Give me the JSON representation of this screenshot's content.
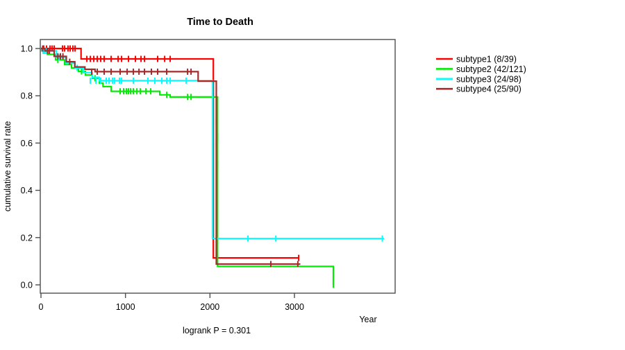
{
  "chart_data": {
    "type": "line",
    "variant": "kaplan-meier-step",
    "title": "Time to Death",
    "xlabel": "Year",
    "ylabel": "cumulative survival rate",
    "footnote": "logrank P = 0.301",
    "xticks": [
      0,
      1000,
      2000,
      3000
    ],
    "yticks": [
      0.0,
      0.2,
      0.4,
      0.6,
      0.8,
      1.0
    ],
    "xlim": [
      0,
      4200
    ],
    "ylim": [
      0,
      1
    ],
    "grid": false,
    "legend_position": "right-outside",
    "series": [
      {
        "id": "subtype1",
        "name": "subtype1 (8/39)",
        "color": "#ff0000",
        "steps": [
          [
            0,
            1.0
          ],
          [
            474,
            0.956
          ],
          [
            2040,
            0.114
          ],
          [
            3050,
            0.114
          ]
        ],
        "censor_marks": [
          [
            33,
            1.0
          ],
          [
            66,
            1.0
          ],
          [
            107,
            1.0
          ],
          [
            132,
            1.0
          ],
          [
            156,
            1.0
          ],
          [
            255,
            1.0
          ],
          [
            280,
            1.0
          ],
          [
            320,
            1.0
          ],
          [
            345,
            1.0
          ],
          [
            378,
            1.0
          ],
          [
            403,
            1.0
          ],
          [
            543,
            0.956
          ],
          [
            584,
            0.956
          ],
          [
            625,
            0.956
          ],
          [
            666,
            0.956
          ],
          [
            707,
            0.956
          ],
          [
            748,
            0.956
          ],
          [
            830,
            0.956
          ],
          [
            913,
            0.956
          ],
          [
            954,
            0.956
          ],
          [
            1036,
            0.956
          ],
          [
            1118,
            0.956
          ],
          [
            1184,
            0.956
          ],
          [
            1225,
            0.956
          ],
          [
            1381,
            0.956
          ],
          [
            1464,
            0.956
          ],
          [
            1529,
            0.956
          ],
          [
            3050,
            0.114
          ]
        ]
      },
      {
        "id": "subtype2",
        "name": "subtype2 (42/121)",
        "color": "#00ee00",
        "steps": [
          [
            0,
            1.0
          ],
          [
            8,
            0.99
          ],
          [
            76,
            0.975
          ],
          [
            173,
            0.952
          ],
          [
            280,
            0.932
          ],
          [
            362,
            0.918
          ],
          [
            444,
            0.903
          ],
          [
            526,
            0.888
          ],
          [
            608,
            0.874
          ],
          [
            690,
            0.854
          ],
          [
            734,
            0.839
          ],
          [
            830,
            0.819
          ],
          [
            1406,
            0.804
          ],
          [
            1529,
            0.795
          ],
          [
            2090,
            0.078
          ],
          [
            3460,
            0.0
          ]
        ],
        "censor_marks": [
          [
            200,
            0.952
          ],
          [
            480,
            0.903
          ],
          [
            640,
            0.874
          ],
          [
            937,
            0.819
          ],
          [
            978,
            0.819
          ],
          [
            1011,
            0.819
          ],
          [
            1036,
            0.819
          ],
          [
            1060,
            0.819
          ],
          [
            1093,
            0.819
          ],
          [
            1135,
            0.819
          ],
          [
            1176,
            0.819
          ],
          [
            1242,
            0.819
          ],
          [
            1299,
            0.819
          ],
          [
            1488,
            0.804
          ],
          [
            1735,
            0.795
          ],
          [
            1776,
            0.795
          ],
          [
            2090,
            0.625
          ],
          [
            2090,
            0.51
          ],
          [
            3460,
            0.0
          ]
        ]
      },
      {
        "id": "subtype3",
        "name": "subtype3 (24/98)",
        "color": "#00ffff",
        "steps": [
          [
            0,
            1.0
          ],
          [
            16,
            0.99
          ],
          [
            183,
            0.962
          ],
          [
            296,
            0.938
          ],
          [
            403,
            0.918
          ],
          [
            499,
            0.898
          ],
          [
            608,
            0.878
          ],
          [
            690,
            0.864
          ],
          [
            2030,
            0.196
          ],
          [
            4060,
            0.196
          ]
        ],
        "censor_marks": [
          [
            25,
            0.99
          ],
          [
            41,
            0.99
          ],
          [
            58,
            0.99
          ],
          [
            214,
            0.962
          ],
          [
            428,
            0.918
          ],
          [
            584,
            0.864
          ],
          [
            650,
            0.864
          ],
          [
            707,
            0.864
          ],
          [
            773,
            0.864
          ],
          [
            806,
            0.864
          ],
          [
            847,
            0.864
          ],
          [
            872,
            0.864
          ],
          [
            929,
            0.864
          ],
          [
            954,
            0.864
          ],
          [
            1093,
            0.864
          ],
          [
            1266,
            0.864
          ],
          [
            1348,
            0.864
          ],
          [
            1430,
            0.864
          ],
          [
            1488,
            0.864
          ],
          [
            1529,
            0.864
          ],
          [
            1718,
            0.864
          ],
          [
            2030,
            0.35
          ],
          [
            2450,
            0.196
          ],
          [
            2780,
            0.196
          ],
          [
            4040,
            0.196
          ]
        ]
      },
      {
        "id": "subtype4",
        "name": "subtype4 (25/90)",
        "color": "#a52a2a",
        "steps": [
          [
            0,
            1.0
          ],
          [
            47,
            0.99
          ],
          [
            156,
            0.967
          ],
          [
            300,
            0.944
          ],
          [
            400,
            0.922
          ],
          [
            520,
            0.912
          ],
          [
            640,
            0.902
          ],
          [
            1860,
            0.862
          ],
          [
            2075,
            0.088
          ],
          [
            3070,
            0.088
          ]
        ],
        "censor_marks": [
          [
            20,
            1.0
          ],
          [
            80,
            0.99
          ],
          [
            100,
            0.99
          ],
          [
            200,
            0.967
          ],
          [
            230,
            0.967
          ],
          [
            260,
            0.967
          ],
          [
            340,
            0.944
          ],
          [
            600,
            0.902
          ],
          [
            666,
            0.902
          ],
          [
            748,
            0.902
          ],
          [
            830,
            0.902
          ],
          [
            937,
            0.902
          ],
          [
            1020,
            0.902
          ],
          [
            1093,
            0.902
          ],
          [
            1160,
            0.902
          ],
          [
            1225,
            0.902
          ],
          [
            1307,
            0.902
          ],
          [
            1381,
            0.902
          ],
          [
            1488,
            0.902
          ],
          [
            1735,
            0.902
          ],
          [
            1776,
            0.902
          ],
          [
            2075,
            0.69
          ],
          [
            2075,
            0.6
          ],
          [
            2720,
            0.088
          ],
          [
            3040,
            0.088
          ]
        ]
      }
    ]
  }
}
